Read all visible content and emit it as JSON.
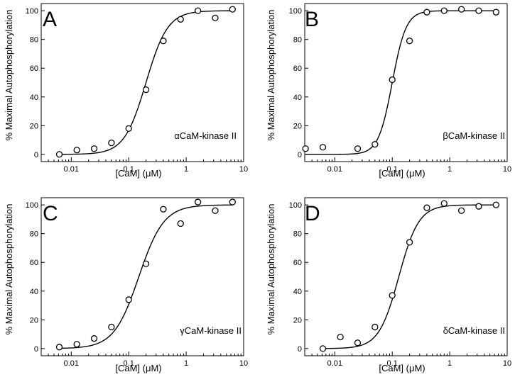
{
  "chart_data": [
    {
      "type": "scatter",
      "panel_label": "A",
      "annotation": "αCaM-kinase II",
      "xlabel": "[CaM] (μM)",
      "ylabel": "% Maximal Autophosphorylation",
      "xscale": "log",
      "xlim": [
        0.003,
        10
      ],
      "ylim": [
        -5,
        105
      ],
      "xticks": [
        0.01,
        0.1,
        1,
        10
      ],
      "xtick_labels": [
        "0.01",
        "0.1",
        "1",
        "10"
      ],
      "yticks": [
        0,
        20,
        40,
        60,
        80,
        100
      ],
      "ytick_labels": [
        "0",
        "20",
        "40",
        "60",
        "80",
        "100"
      ],
      "points": {
        "x": [
          0.0062,
          0.0125,
          0.025,
          0.05,
          0.1,
          0.2,
          0.4,
          0.8,
          1.6,
          3.2,
          6.4
        ],
        "y": [
          0,
          3,
          4,
          8,
          18,
          45,
          79,
          94,
          100,
          95,
          101
        ]
      },
      "fit": {
        "model": "hill",
        "top": 100,
        "ec50": 0.2,
        "hill": 2.3
      }
    },
    {
      "type": "scatter",
      "panel_label": "B",
      "annotation": "βCaM-kinase II",
      "xlabel": "[CaM] (μM)",
      "ylabel": "% Maximal Autophosphorylation",
      "xscale": "log",
      "xlim": [
        0.003,
        10
      ],
      "ylim": [
        -5,
        105
      ],
      "xticks": [
        0.01,
        0.1,
        1,
        10
      ],
      "xtick_labels": [
        "0.01",
        "0.1",
        "1",
        "10"
      ],
      "yticks": [
        0,
        20,
        40,
        60,
        80,
        100
      ],
      "ytick_labels": [
        "0",
        "20",
        "40",
        "60",
        "80",
        "100"
      ],
      "points": {
        "x": [
          0.0031,
          0.0062,
          0.025,
          0.05,
          0.1,
          0.2,
          0.4,
          0.8,
          1.6,
          3.2,
          6.4
        ],
        "y": [
          4,
          5,
          4,
          7,
          52,
          79,
          99,
          100,
          101,
          100,
          99
        ]
      },
      "fit": {
        "model": "hill",
        "top": 100,
        "ec50": 0.1,
        "hill": 3.6
      }
    },
    {
      "type": "scatter",
      "panel_label": "C",
      "annotation": "γCaM-kinase II",
      "xlabel": "[CaM] (μM)",
      "ylabel": "% Maximal Autophosphorylation",
      "xscale": "log",
      "xlim": [
        0.003,
        10
      ],
      "ylim": [
        -5,
        105
      ],
      "xticks": [
        0.01,
        0.1,
        1,
        10
      ],
      "xtick_labels": [
        "0.01",
        "0.1",
        "1",
        "10"
      ],
      "yticks": [
        0,
        20,
        40,
        60,
        80,
        100
      ],
      "ytick_labels": [
        "0",
        "20",
        "40",
        "60",
        "80",
        "100"
      ],
      "points": {
        "x": [
          0.0062,
          0.0125,
          0.025,
          0.05,
          0.1,
          0.2,
          0.4,
          0.8,
          1.6,
          3.2,
          6.4
        ],
        "y": [
          1,
          3,
          7,
          15,
          34,
          59,
          97,
          87,
          102,
          96,
          102
        ]
      },
      "fit": {
        "model": "hill",
        "top": 100,
        "ec50": 0.15,
        "hill": 2.0
      }
    },
    {
      "type": "scatter",
      "panel_label": "D",
      "annotation": "δCaM-kinase II",
      "xlabel": "[CaM] (μM)",
      "ylabel": "% Maximal Autophosphorylation",
      "xscale": "log",
      "xlim": [
        0.003,
        10
      ],
      "ylim": [
        -5,
        105
      ],
      "xticks": [
        0.01,
        0.1,
        1,
        10
      ],
      "xtick_labels": [
        "0.01",
        "0.1",
        "1",
        "10"
      ],
      "yticks": [
        0,
        20,
        40,
        60,
        80,
        100
      ],
      "ytick_labels": [
        "0",
        "20",
        "40",
        "60",
        "80",
        "100"
      ],
      "points": {
        "x": [
          0.0062,
          0.0125,
          0.025,
          0.05,
          0.1,
          0.2,
          0.4,
          0.8,
          1.6,
          3.2,
          6.4
        ],
        "y": [
          0,
          8,
          4,
          15,
          37,
          74,
          98,
          101,
          96,
          99,
          100
        ]
      },
      "fit": {
        "model": "hill",
        "top": 100,
        "ec50": 0.13,
        "hill": 2.5
      }
    }
  ]
}
